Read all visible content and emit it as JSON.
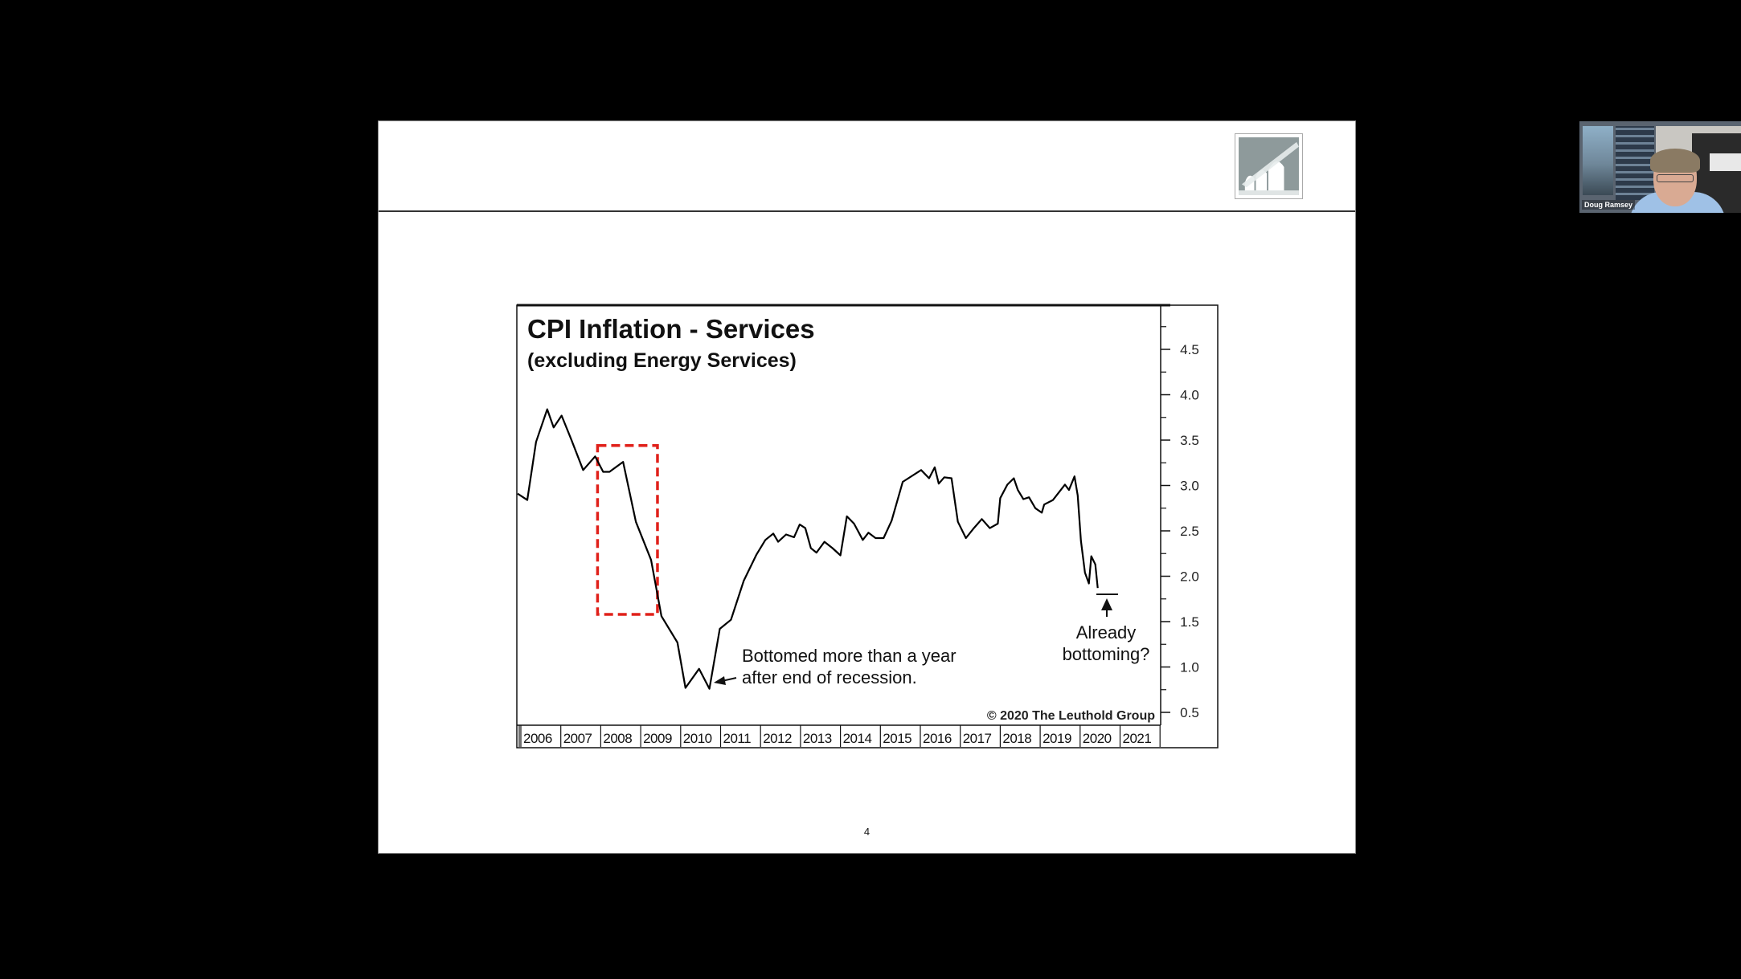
{
  "slide": {
    "page_number": "4",
    "logo": "bridge-arch-logo"
  },
  "video_tile": {
    "participant_name": "Doug Ramsey"
  },
  "chart_data": {
    "type": "line",
    "title": "CPI Inflation - Services",
    "subtitle": "(excluding Energy Services)",
    "xlabel": "",
    "ylabel": "",
    "ylim": [
      0.5,
      4.8
    ],
    "y_ticks": [
      "4.5",
      "4.0",
      "3.5",
      "3.0",
      "2.5",
      "2.0",
      "1.5",
      "1.0",
      "0.5"
    ],
    "y_tick_values": [
      4.5,
      4.0,
      3.5,
      3.0,
      2.5,
      2.0,
      1.5,
      1.0,
      0.5
    ],
    "x_ticks": [
      "2006",
      "2007",
      "2008",
      "2009",
      "2010",
      "2011",
      "2012",
      "2013",
      "2014",
      "2015",
      "2016",
      "2017",
      "2018",
      "2019",
      "2020",
      "2021"
    ],
    "y_axis_position": "right",
    "grid": false,
    "legend": null,
    "series": [
      {
        "name": "CPI Services ex Energy Services (YoY %)",
        "color": "#000000",
        "x": [
          2005.92,
          2006.16,
          2006.38,
          2006.66,
          2006.82,
          2007.02,
          2007.26,
          2007.56,
          2007.86,
          2008.06,
          2008.22,
          2008.56,
          2008.88,
          2009.26,
          2009.52,
          2009.92,
          2010.12,
          2010.46,
          2010.72,
          2010.98,
          2011.26,
          2011.58,
          2011.9,
          2012.12,
          2012.32,
          2012.44,
          2012.64,
          2012.84,
          2012.98,
          2013.12,
          2013.26,
          2013.4,
          2013.6,
          2013.8,
          2014.0,
          2014.16,
          2014.34,
          2014.56,
          2014.7,
          2014.88,
          2015.08,
          2015.28,
          2015.56,
          2016.02,
          2016.22,
          2016.36,
          2016.46,
          2016.6,
          2016.78,
          2016.94,
          2017.14,
          2017.34,
          2017.54,
          2017.74,
          2017.94,
          2018.0,
          2018.18,
          2018.34,
          2018.44,
          2018.58,
          2018.72,
          2018.88,
          2019.04,
          2019.1,
          2019.32,
          2019.62,
          2019.72,
          2019.86,
          2019.94,
          2020.02,
          2020.12,
          2020.22,
          2020.28,
          2020.38,
          2020.44
        ],
        "values": [
          2.91,
          2.84,
          3.48,
          3.84,
          3.64,
          3.77,
          3.51,
          3.17,
          3.32,
          3.15,
          3.15,
          3.26,
          2.6,
          2.18,
          1.56,
          1.27,
          0.77,
          0.98,
          0.76,
          1.42,
          1.52,
          1.95,
          2.24,
          2.4,
          2.47,
          2.38,
          2.46,
          2.43,
          2.57,
          2.53,
          2.31,
          2.26,
          2.38,
          2.31,
          2.23,
          2.66,
          2.58,
          2.4,
          2.48,
          2.42,
          2.42,
          2.61,
          3.04,
          3.17,
          3.08,
          3.2,
          3.02,
          3.09,
          3.08,
          2.6,
          2.42,
          2.53,
          2.63,
          2.53,
          2.58,
          2.86,
          3.01,
          3.08,
          2.95,
          2.85,
          2.87,
          2.75,
          2.7,
          2.79,
          2.84,
          3.01,
          2.95,
          3.1,
          2.89,
          2.39,
          2.04,
          1.92,
          2.22,
          2.13,
          1.87
        ]
      }
    ],
    "highlight_box": {
      "label": "recession-highlight",
      "color": "#e0201a",
      "x_start": 2007.92,
      "x_end": 2009.42,
      "y_low": 1.58,
      "y_high": 3.44
    },
    "annotations": [
      {
        "id": "bottom-note",
        "lines": [
          "Bottomed more than a year",
          "after end of recession."
        ],
        "arrow_to": [
          2010.76,
          0.78
        ]
      },
      {
        "id": "bottoming-note",
        "lines": [
          "Already",
          "bottoming?"
        ],
        "arrow_to": [
          2020.42,
          1.85
        ]
      }
    ],
    "copyright": "© 2020 The Leuthold Group"
  }
}
